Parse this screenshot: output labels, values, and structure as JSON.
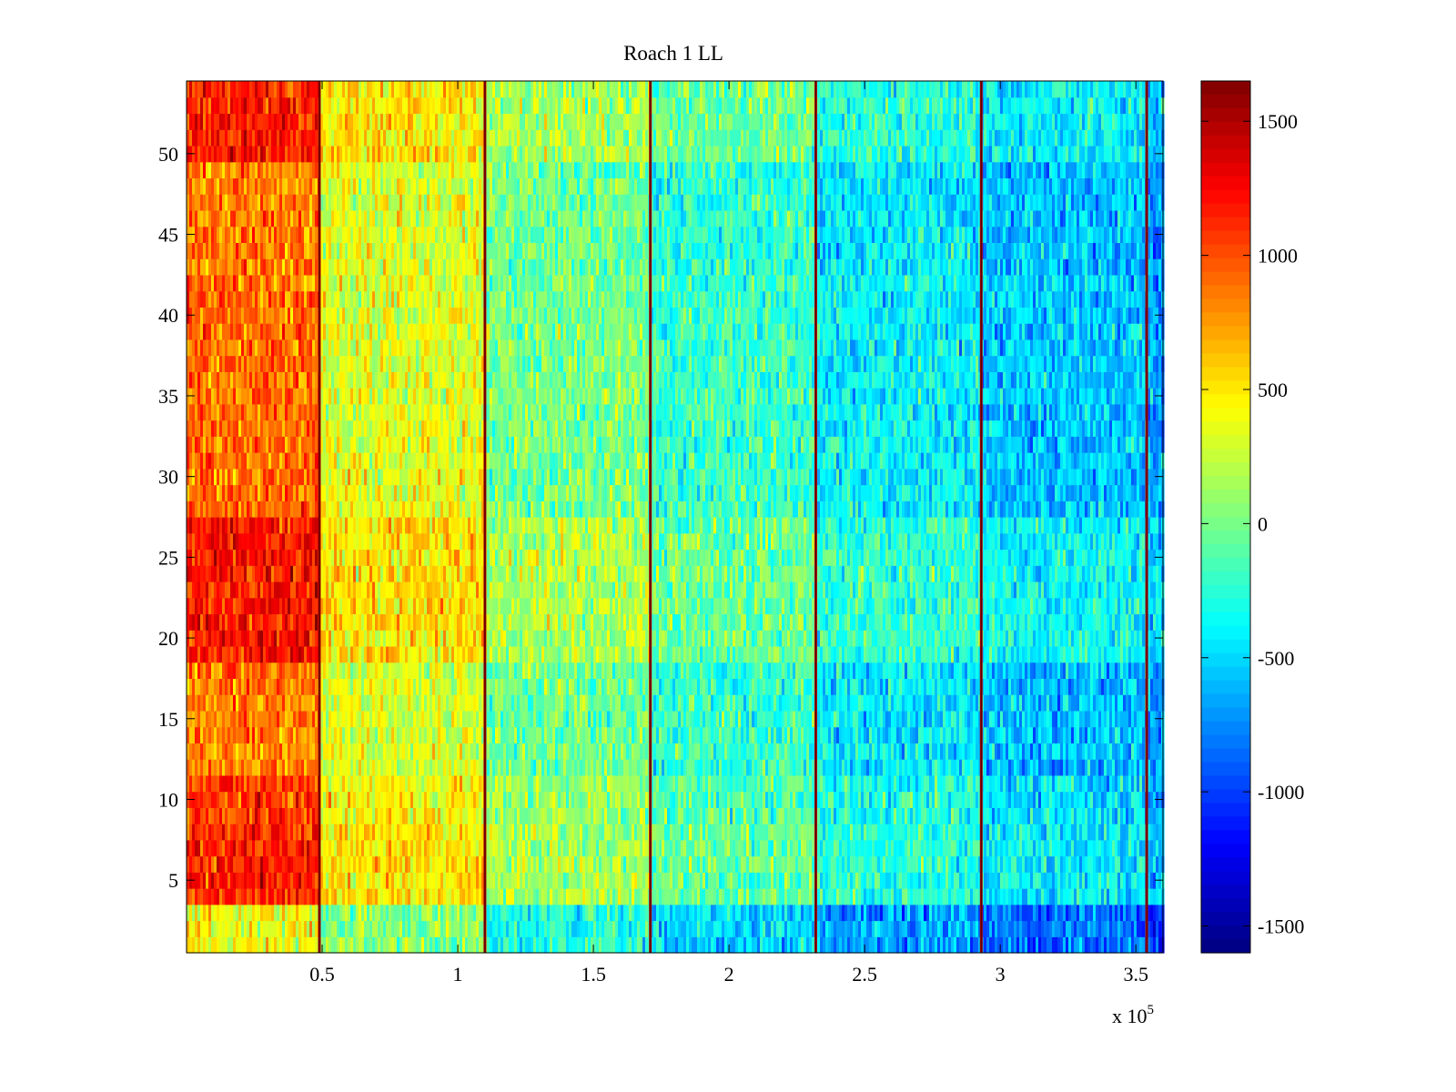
{
  "chart_data": {
    "type": "heatmap",
    "title": "Roach 1 LL",
    "xlabel": "",
    "ylabel": "",
    "x_exponent_label": "x 10",
    "x_exponent_power": "5",
    "xlim": [
      0,
      3.6
    ],
    "ylim": [
      0.5,
      54.5
    ],
    "x_ticks": [
      {
        "value": 0.5,
        "label": "0.5"
      },
      {
        "value": 1.0,
        "label": "1"
      },
      {
        "value": 1.5,
        "label": "1.5"
      },
      {
        "value": 2.0,
        "label": "2"
      },
      {
        "value": 2.5,
        "label": "2.5"
      },
      {
        "value": 3.0,
        "label": "3"
      },
      {
        "value": 3.5,
        "label": "3.5"
      }
    ],
    "y_ticks": [
      {
        "value": 5,
        "label": "5"
      },
      {
        "value": 10,
        "label": "10"
      },
      {
        "value": 15,
        "label": "15"
      },
      {
        "value": 20,
        "label": "20"
      },
      {
        "value": 25,
        "label": "25"
      },
      {
        "value": 30,
        "label": "30"
      },
      {
        "value": 35,
        "label": "35"
      },
      {
        "value": 40,
        "label": "40"
      },
      {
        "value": 45,
        "label": "45"
      },
      {
        "value": 50,
        "label": "50"
      }
    ],
    "rows": 54,
    "column_bands": [
      {
        "x_start": 0.0,
        "x_end": 0.49,
        "mean_value": 900
      },
      {
        "x_start": 0.49,
        "x_end": 1.1,
        "mean_value": 350
      },
      {
        "x_start": 1.1,
        "x_end": 1.71,
        "mean_value": 0
      },
      {
        "x_start": 1.71,
        "x_end": 2.32,
        "mean_value": -200
      },
      {
        "x_start": 2.32,
        "x_end": 2.93,
        "mean_value": -400
      },
      {
        "x_start": 2.93,
        "x_end": 3.54,
        "mean_value": -550
      },
      {
        "x_start": 3.54,
        "x_end": 3.6,
        "mean_value": -700
      }
    ],
    "row_group_offsets": [
      {
        "y_start": 0.5,
        "y_end": 3.5,
        "offset": -500
      },
      {
        "y_start": 3.5,
        "y_end": 8.5,
        "offset": 250
      },
      {
        "y_start": 8.5,
        "y_end": 11.5,
        "offset": 150
      },
      {
        "y_start": 11.5,
        "y_end": 18.5,
        "offset": -50
      },
      {
        "y_start": 18.5,
        "y_end": 27.5,
        "offset": 300
      },
      {
        "y_start": 27.5,
        "y_end": 42.5,
        "offset": 0
      },
      {
        "y_start": 42.5,
        "y_end": 49.5,
        "offset": -50
      },
      {
        "y_start": 49.5,
        "y_end": 54.5,
        "offset": 250
      }
    ],
    "separator_lines_x": [
      0.49,
      1.1,
      1.71,
      2.32,
      2.93,
      3.54
    ],
    "separator_value": 1500,
    "colorbar": {
      "colormap": "jet",
      "range": [
        -1600,
        1650
      ],
      "ticks": [
        {
          "value": 1500,
          "label": "1500"
        },
        {
          "value": 1000,
          "label": "1000"
        },
        {
          "value": 500,
          "label": "500"
        },
        {
          "value": 0,
          "label": "0"
        },
        {
          "value": -500,
          "label": "-500"
        },
        {
          "value": -1000,
          "label": "-1000"
        },
        {
          "value": -1500,
          "label": "-1500"
        }
      ]
    }
  }
}
